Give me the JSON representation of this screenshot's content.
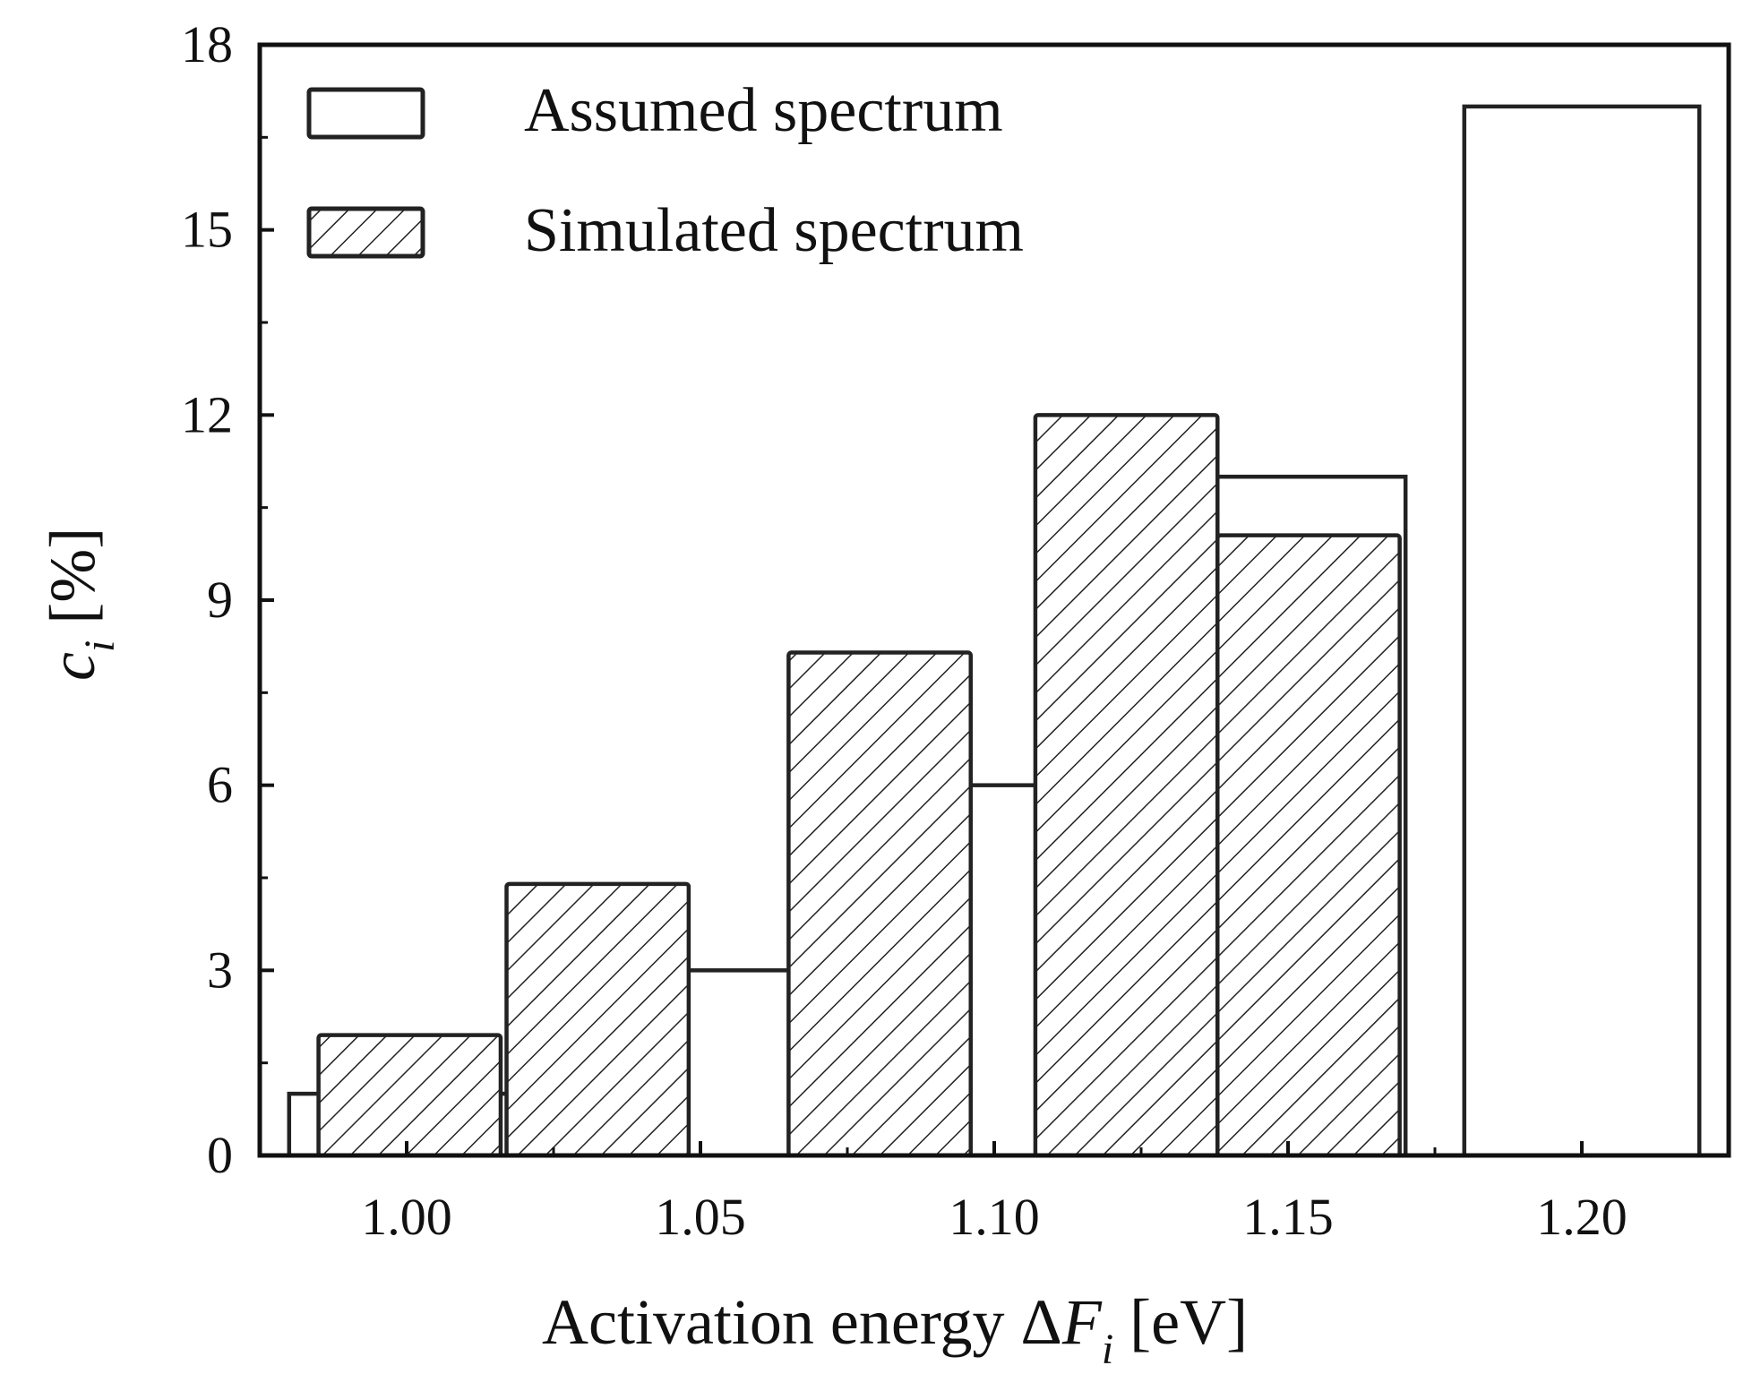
{
  "chart_data": {
    "type": "bar",
    "title": "",
    "xlabel": {
      "prefix": "Activation energy Δ",
      "italic": "F",
      "subscript": "i",
      "suffix": " [eV]"
    },
    "ylabel": {
      "italic": "c",
      "subscript": "i",
      "suffix": " [%]"
    },
    "xlim": [
      0.975,
      1.225
    ],
    "ylim": [
      0,
      18
    ],
    "x_ticks": [
      {
        "value": 1.0,
        "label": "1.00"
      },
      {
        "value": 1.05,
        "label": "1.05"
      },
      {
        "value": 1.1,
        "label": "1.10"
      },
      {
        "value": 1.15,
        "label": "1.15"
      },
      {
        "value": 1.2,
        "label": "1.20"
      }
    ],
    "y_ticks": [
      {
        "value": 0,
        "label": "0"
      },
      {
        "value": 3,
        "label": "3"
      },
      {
        "value": 6,
        "label": "6"
      },
      {
        "value": 9,
        "label": "9"
      },
      {
        "value": 12,
        "label": "12"
      },
      {
        "value": 15,
        "label": "15"
      },
      {
        "value": 18,
        "label": "18"
      }
    ],
    "grid": false,
    "legend_position": "top-left",
    "series": [
      {
        "name": "Assumed spectrum",
        "style": "open",
        "bars": [
          {
            "x_start": 0.98,
            "x_end": 1.02,
            "value": 1
          },
          {
            "x_start": 1.03,
            "x_end": 1.07,
            "value": 3
          },
          {
            "x_start": 1.08,
            "x_end": 1.12,
            "value": 6
          },
          {
            "x_start": 1.13,
            "x_end": 1.17,
            "value": 11
          },
          {
            "x_start": 1.18,
            "x_end": 1.22,
            "value": 17
          }
        ]
      },
      {
        "name": "Simulated spectrum",
        "style": "hatched",
        "bars": [
          {
            "x_start": 0.985,
            "x_end": 1.016,
            "value": 1.95
          },
          {
            "x_start": 1.017,
            "x_end": 1.048,
            "value": 4.4
          },
          {
            "x_start": 1.065,
            "x_end": 1.096,
            "value": 8.15
          },
          {
            "x_start": 1.107,
            "x_end": 1.138,
            "value": 12
          },
          {
            "x_start": 1.138,
            "x_end": 1.169,
            "value": 10.05
          }
        ]
      }
    ]
  }
}
